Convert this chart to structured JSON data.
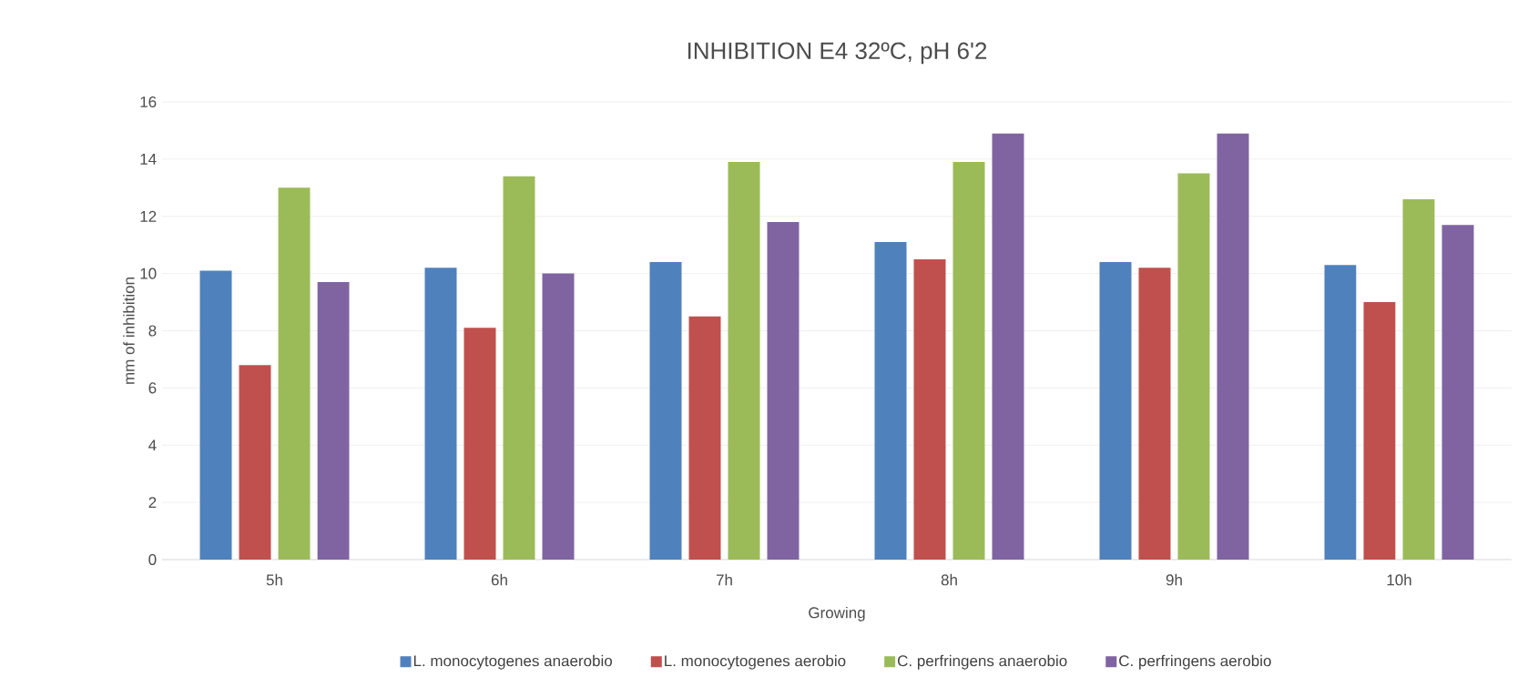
{
  "chart_data": {
    "type": "bar",
    "title": "INHIBITION E4 32ºC, pH 6'2",
    "xlabel": "Growing",
    "ylabel": "mm of inhibition",
    "categories": [
      "5h",
      "6h",
      "7h",
      "8h",
      "9h",
      "10h"
    ],
    "series": [
      {
        "name": "L. monocytogenes anaerobio",
        "color": "#4f81bd",
        "values": [
          10.1,
          10.2,
          10.4,
          11.1,
          10.4,
          10.3
        ]
      },
      {
        "name": "L. monocytogenes aerobio",
        "color": "#c0504d",
        "values": [
          6.8,
          8.1,
          8.5,
          10.5,
          10.2,
          9.0
        ]
      },
      {
        "name": "C. perfringens anaerobio",
        "color": "#9bbb59",
        "values": [
          13.0,
          13.4,
          13.9,
          13.9,
          13.5,
          12.6
        ]
      },
      {
        "name": "C. perfringens aerobio",
        "color": "#8064a2",
        "values": [
          9.7,
          10.0,
          11.8,
          14.9,
          14.9,
          11.7
        ]
      }
    ],
    "ylim": [
      0,
      16
    ],
    "yticks": [
      0,
      2,
      4,
      6,
      8,
      10,
      12,
      14,
      16
    ],
    "grid": "y",
    "legend": "bottom"
  }
}
